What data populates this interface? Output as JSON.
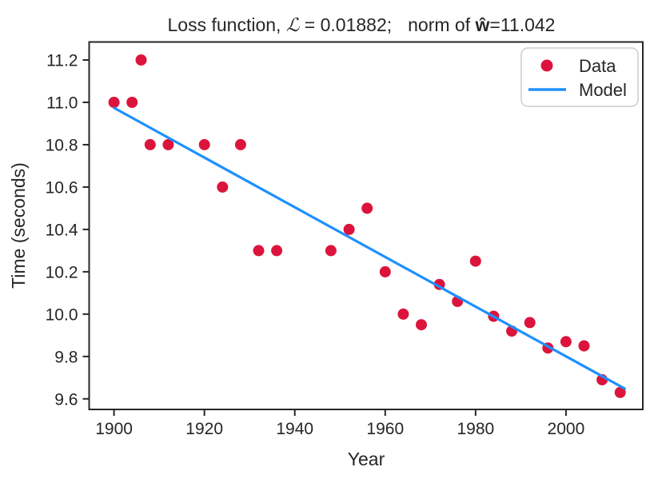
{
  "chart_data": {
    "type": "scatter",
    "title": "Loss function, ℒ = 0.01882;    norm of ŵ=11.042",
    "title_parts": {
      "prefix": "Loss function, ",
      "loss_symbol": "ℒ",
      "loss_eq": " = 0.01882;",
      "norm_text": "norm of ",
      "w_symbol": "ŵ",
      "w_value": "=11.042"
    },
    "xlabel": "Year",
    "ylabel": "Time (seconds)",
    "xlim": [
      1894.5,
      2017.0
    ],
    "ylim": [
      9.55,
      11.285
    ],
    "x_ticks": [
      1900,
      1920,
      1940,
      1960,
      1980,
      2000
    ],
    "y_ticks": [
      9.6,
      9.8,
      10.0,
      10.2,
      10.4,
      10.6,
      10.8,
      11.0,
      11.2
    ],
    "grid": false,
    "legend_position": "upper right",
    "legend": [
      {
        "label": "Data",
        "marker": "circle",
        "color": "#dc143c"
      },
      {
        "label": "Model",
        "marker": "line",
        "color": "#1e90ff"
      }
    ],
    "colors": {
      "data": "#dc143c",
      "model": "#1e90ff",
      "axes": "#262626",
      "legend_border": "#cccccc"
    },
    "series": [
      {
        "name": "Data",
        "type": "scatter",
        "color": "#dc143c",
        "points": [
          [
            1900,
            11.0
          ],
          [
            1904,
            11.0
          ],
          [
            1906,
            11.2
          ],
          [
            1908,
            10.8
          ],
          [
            1912,
            10.8
          ],
          [
            1920,
            10.8
          ],
          [
            1924,
            10.6
          ],
          [
            1928,
            10.8
          ],
          [
            1932,
            10.3
          ],
          [
            1936,
            10.3
          ],
          [
            1948,
            10.3
          ],
          [
            1952,
            10.4
          ],
          [
            1956,
            10.5
          ],
          [
            1960,
            10.2
          ],
          [
            1964,
            10.0
          ],
          [
            1968,
            9.95
          ],
          [
            1972,
            10.14
          ],
          [
            1976,
            10.06
          ],
          [
            1980,
            10.25
          ],
          [
            1984,
            9.99
          ],
          [
            1988,
            9.92
          ],
          [
            1992,
            9.96
          ],
          [
            1996,
            9.84
          ],
          [
            2000,
            9.87
          ],
          [
            2004,
            9.85
          ],
          [
            2008,
            9.69
          ],
          [
            2012,
            9.63
          ]
        ]
      },
      {
        "name": "Model",
        "type": "line",
        "color": "#1e90ff",
        "points": [
          [
            1900,
            10.974
          ],
          [
            2013,
            9.648
          ]
        ]
      }
    ]
  }
}
